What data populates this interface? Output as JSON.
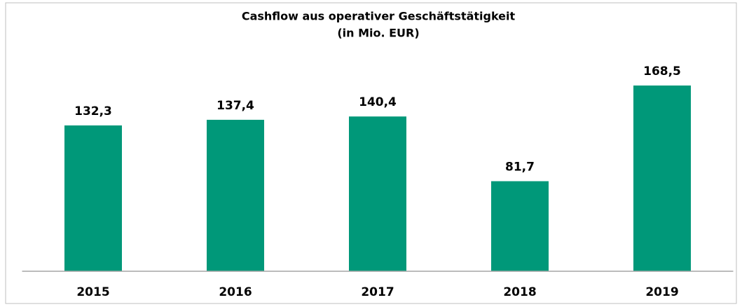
{
  "chart_data": {
    "type": "bar",
    "title": "Cashflow aus operativer Geschäftstätigkeit",
    "subtitle": "(in Mio. EUR)",
    "categories": [
      "2015",
      "2016",
      "2017",
      "2018",
      "2019"
    ],
    "values": [
      132.3,
      137.4,
      140.4,
      81.7,
      168.5
    ],
    "value_labels": [
      "132,3",
      "137,4",
      "140,4",
      "81,7",
      "168,5"
    ],
    "color": "#009879"
  }
}
